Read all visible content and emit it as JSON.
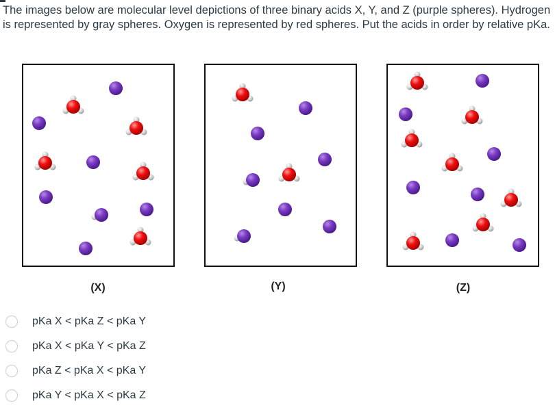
{
  "question": {
    "text": "The images below are molecular level depictions of three binary acids X, Y, and Z (purple spheres). Hydrogen is represented by gray spheres. Oxygen is represented by red spheres. Put the acids in order by relative pKa."
  },
  "panels": [
    {
      "label": "(X)"
    },
    {
      "label": "(Y)"
    },
    {
      "label": "(Z)"
    }
  ],
  "legend_colors": {
    "anion": "#6a2fb0",
    "oxygen": "#ee1111",
    "hydrogen": "#c8c8c8"
  },
  "options": [
    {
      "label": "pKa X < pKa Z < pKa Y"
    },
    {
      "label": "pKa X < pKa Y < pKa Z"
    },
    {
      "label": "pKa Z < pKa X < pKa Y"
    },
    {
      "label": "pKa Y < pKa X < pKa Z"
    }
  ]
}
